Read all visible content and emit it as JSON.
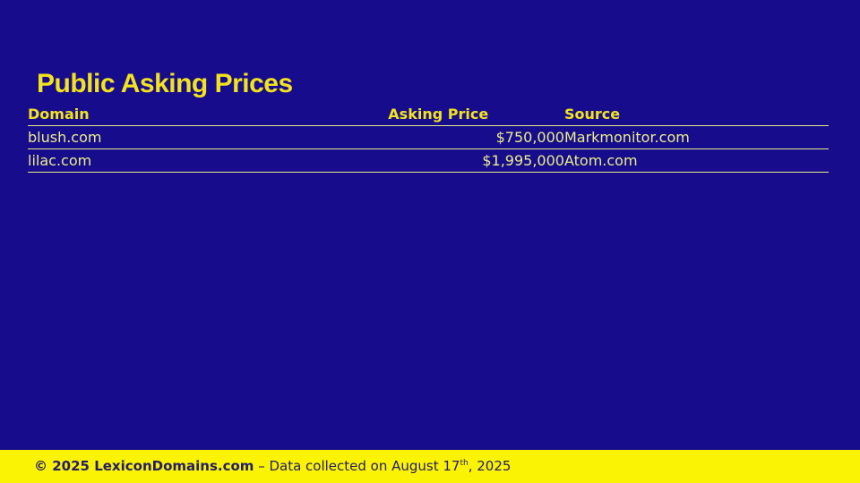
{
  "colors": {
    "background": "#170d8c",
    "accent_yellow": "#f2e31d",
    "pale_yellow_text": "#eaed87",
    "rule_line": "#e6ea8c",
    "footer_bar": "#faf303",
    "footer_text": "#241c6e"
  },
  "title": "Public Asking Prices",
  "table": {
    "columns": [
      {
        "label": "Domain",
        "align": "left"
      },
      {
        "label": "Asking Price",
        "align": "right"
      },
      {
        "label": "Source",
        "align": "left"
      }
    ],
    "rows": [
      {
        "domain": "blush.com",
        "asking_price": "$750,000",
        "source": "Markmonitor.com"
      },
      {
        "domain": "lilac.com",
        "asking_price": "$1,995,000",
        "source": "Atom.com"
      }
    ]
  },
  "chart_data": {
    "type": "table",
    "title": "Public Asking Prices",
    "columns": [
      "Domain",
      "Asking Price",
      "Source"
    ],
    "rows": [
      [
        "blush.com",
        "$750,000",
        "Markmonitor.com"
      ],
      [
        "lilac.com",
        "$1,995,000",
        "Atom.com"
      ]
    ]
  },
  "footer": {
    "copyright": "© 2025 LexiconDomains.com",
    "dash_text": "– Data collected on August 17",
    "sup": "th",
    "suffix": ", 2025"
  }
}
